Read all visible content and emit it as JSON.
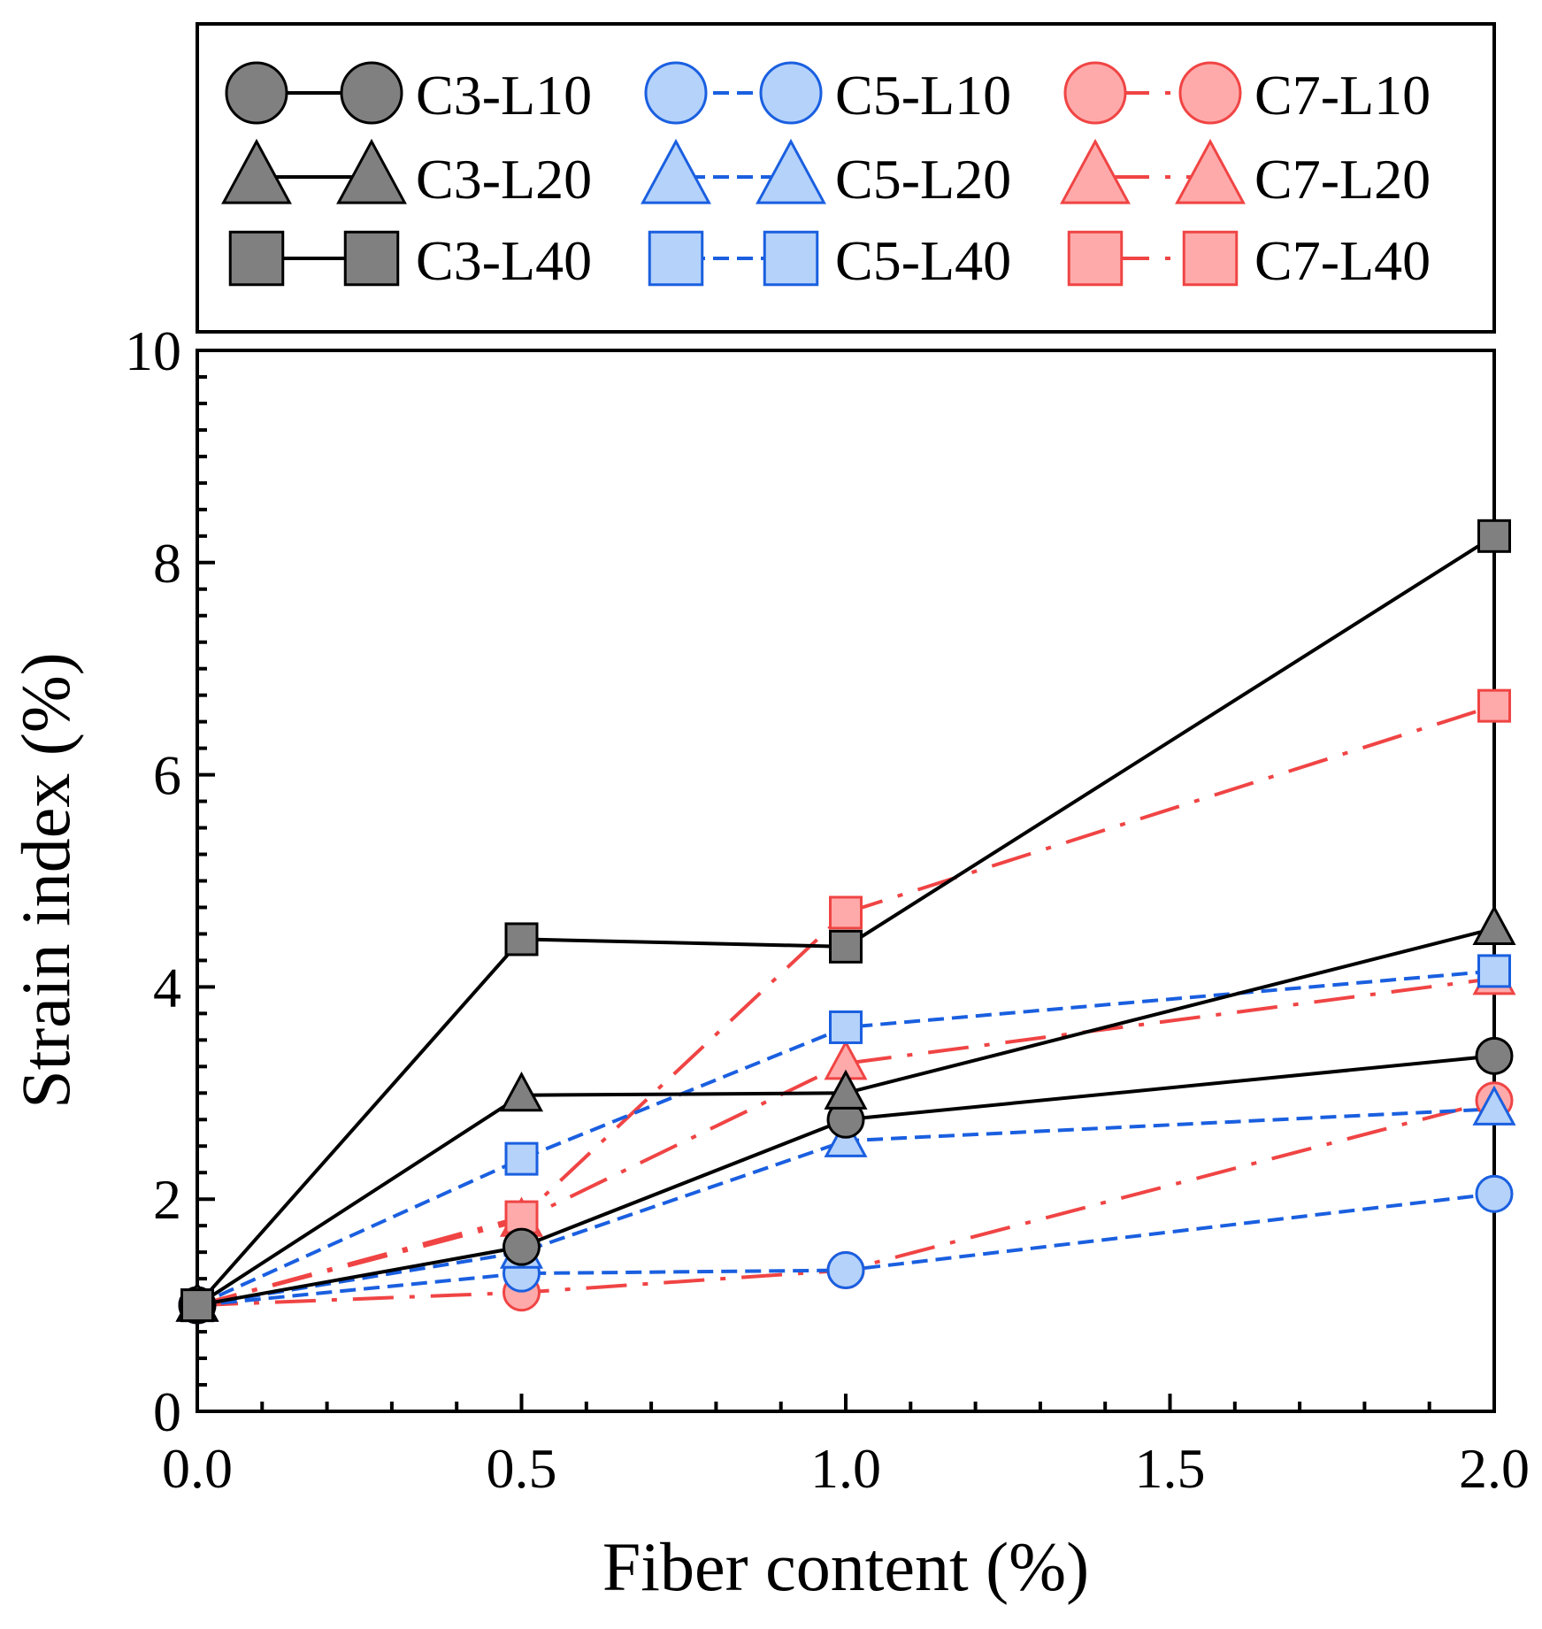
{
  "chart_data": {
    "type": "line",
    "title": "",
    "xlabel": "Fiber content (%)",
    "ylabel": "Strain index (%)",
    "xlim": [
      0.0,
      2.0
    ],
    "ylim": [
      0,
      10
    ],
    "x_ticks": [
      "0.0",
      "0.5",
      "1.0",
      "1.5",
      "2.0"
    ],
    "y_ticks": [
      "0",
      "2",
      "4",
      "6",
      "8",
      "10"
    ],
    "grid": false,
    "legend_position": "top",
    "x": [
      0.0,
      0.5,
      1.0,
      2.0
    ],
    "series": [
      {
        "name": "C3-L10",
        "group": "C3",
        "marker": "circle",
        "values": [
          1.0,
          1.55,
          2.75,
          3.35
        ]
      },
      {
        "name": "C3-L20",
        "group": "C3",
        "marker": "triangle",
        "values": [
          1.0,
          2.98,
          3.0,
          4.55
        ]
      },
      {
        "name": "C3-L40",
        "group": "C3",
        "marker": "square",
        "values": [
          1.0,
          4.45,
          4.38,
          8.25
        ]
      },
      {
        "name": "C5-L10",
        "group": "C5",
        "marker": "circle",
        "values": [
          1.0,
          1.3,
          1.33,
          2.05
        ]
      },
      {
        "name": "C5-L20",
        "group": "C5",
        "marker": "triangle",
        "values": [
          1.0,
          1.5,
          2.55,
          2.85
        ]
      },
      {
        "name": "C5-L40",
        "group": "C5",
        "marker": "square",
        "values": [
          1.0,
          2.38,
          3.62,
          4.15
        ]
      },
      {
        "name": "C7-L10",
        "group": "C7",
        "marker": "circle",
        "values": [
          1.0,
          1.12,
          1.33,
          2.93
        ]
      },
      {
        "name": "C7-L20",
        "group": "C7",
        "marker": "triangle",
        "values": [
          1.0,
          1.8,
          3.28,
          4.08
        ]
      },
      {
        "name": "C7-L40",
        "group": "C7",
        "marker": "square",
        "values": [
          1.0,
          1.83,
          4.7,
          6.65
        ]
      }
    ],
    "styles": {
      "C3": {
        "line": "#000000",
        "fill": "#808080",
        "stroke": "#000000",
        "dash": "solid"
      },
      "C5": {
        "line": "#1a5fe0",
        "fill": "#b4d2fa",
        "stroke": "#1a5fe0",
        "dash": "dashed"
      },
      "C7": {
        "line": "#f04444",
        "fill": "#ffaaaa",
        "stroke": "#f04444",
        "dash": "dashdot"
      }
    }
  }
}
